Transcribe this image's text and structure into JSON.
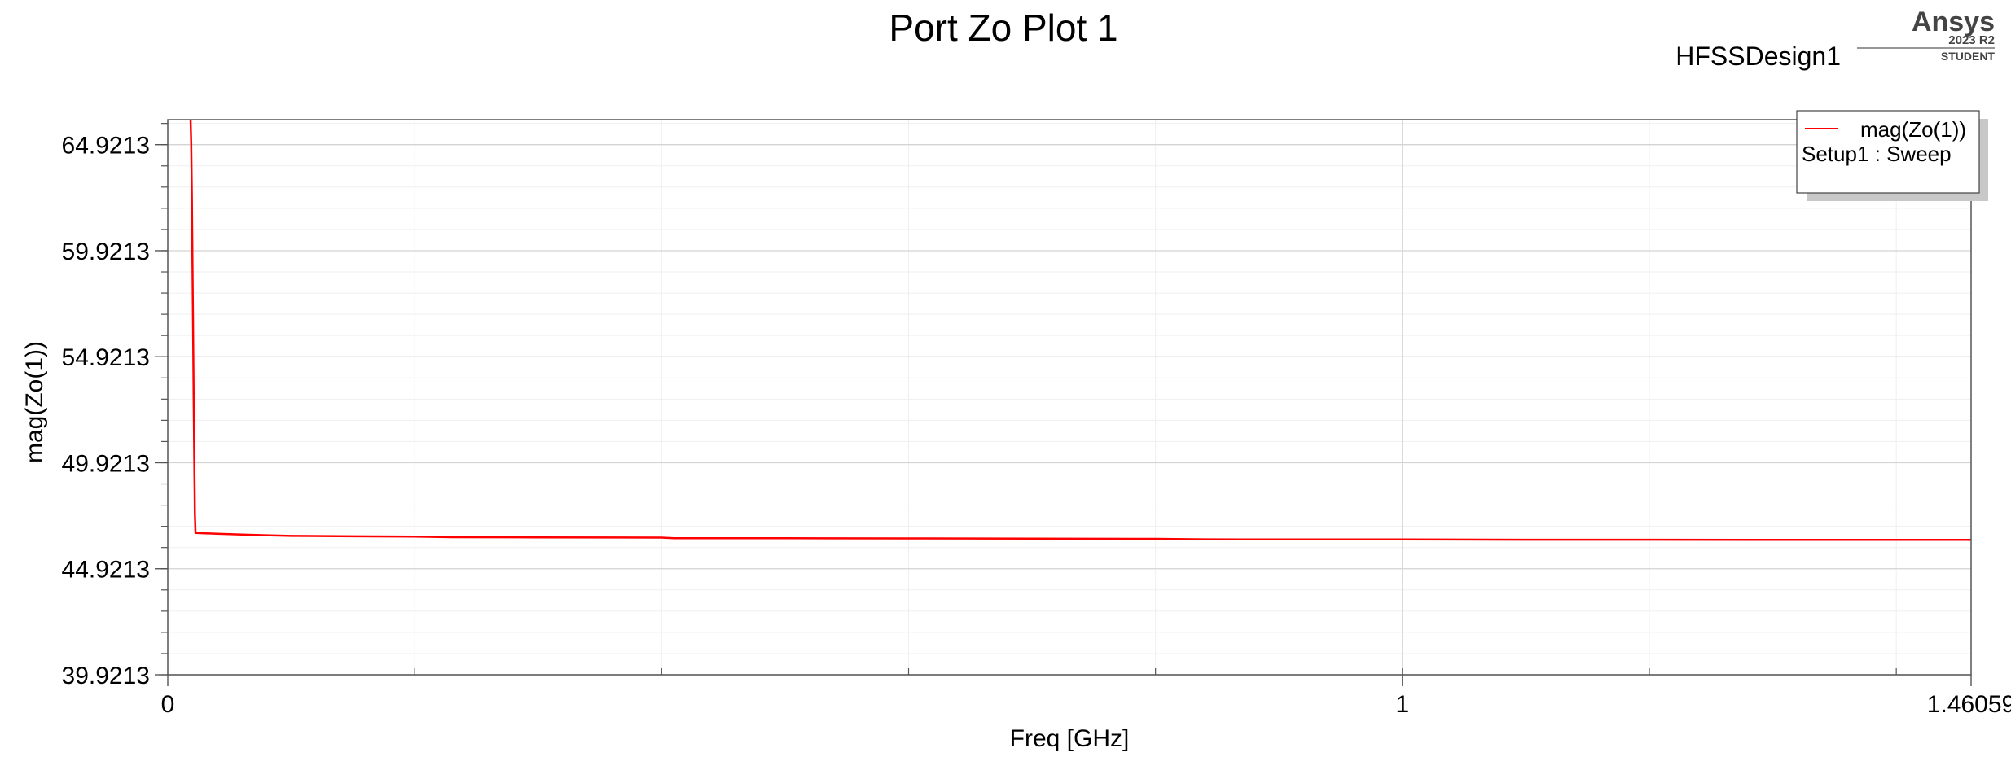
{
  "brand": {
    "name": "Ansys",
    "version": "2023 R2",
    "edition": "STUDENT"
  },
  "design_name": "HFSSDesign1",
  "chart_data": {
    "type": "line",
    "title": "Port Zo Plot 1",
    "xlabel": "Freq [GHz]",
    "ylabel": "mag(Zo(1))",
    "xlim": [
      0,
      1.46059
    ],
    "ylim": [
      39.9213,
      66.1
    ],
    "x_ticks": [
      {
        "value": 0,
        "label": "0"
      },
      {
        "value": 1,
        "label": "1"
      },
      {
        "value": 1.46059,
        "label": "1.46059"
      }
    ],
    "y_ticks": [
      {
        "value": 39.9213,
        "label": "39.9213"
      },
      {
        "value": 44.9213,
        "label": "44.9213"
      },
      {
        "value": 49.9213,
        "label": "49.9213"
      },
      {
        "value": 54.9213,
        "label": "54.9213"
      },
      {
        "value": 59.9213,
        "label": "59.9213"
      },
      {
        "value": 64.9213,
        "label": "64.9213"
      }
    ],
    "grid": true,
    "legend": {
      "placement": "top-right",
      "entries": [
        "mag(Zo(1))",
        "Setup1 : Sweep"
      ]
    },
    "series": [
      {
        "name": "mag(Zo(1))",
        "color": "#ff0000",
        "x": [
          0.0185,
          0.019,
          0.0195,
          0.02,
          0.0205,
          0.021,
          0.0215,
          0.022,
          0.0225,
          0.04,
          0.06,
          0.08,
          0.1,
          0.15,
          0.2,
          0.23,
          0.3,
          0.4,
          0.41,
          0.5,
          0.6,
          0.7,
          0.8,
          0.84,
          0.9,
          1.0,
          1.1,
          1.2,
          1.3,
          1.4,
          1.46059
        ],
        "y": [
          66.1,
          65.0,
          62.5,
          59.5,
          56.2,
          53.0,
          50.0,
          47.5,
          46.61,
          46.57,
          46.53,
          46.5,
          46.47,
          46.45,
          46.44,
          46.41,
          46.4,
          46.39,
          46.36,
          46.36,
          46.35,
          46.34,
          46.33,
          46.31,
          46.3,
          46.3,
          46.29,
          46.29,
          46.28,
          46.28,
          46.28
        ]
      }
    ]
  }
}
